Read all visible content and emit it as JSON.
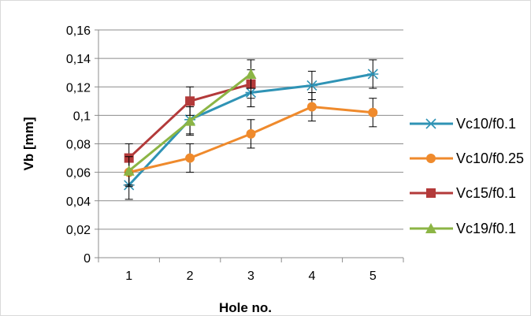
{
  "chart_data": {
    "type": "line",
    "xlabel": "Hole no.",
    "ylabel": "Vb [mm]",
    "categories": [
      "1",
      "2",
      "3",
      "4",
      "5"
    ],
    "ylim": [
      0,
      0.16
    ],
    "yticks": [
      "0",
      "0,02",
      "0,04",
      "0,06",
      "0,08",
      "0,1",
      "0,12",
      "0,14",
      "0,16"
    ],
    "grid": "horizontal",
    "legend": "right",
    "error_bar": 0.01,
    "series": [
      {
        "name": "Vc10/f0.1",
        "color": "#2f93b5",
        "marker": "asterisk",
        "values": [
          0.051,
          0.097,
          0.116,
          0.121,
          0.129
        ]
      },
      {
        "name": "Vc10/f0.25",
        "color": "#ef8a2c",
        "marker": "circle",
        "values": [
          0.06,
          0.07,
          0.087,
          0.106,
          0.102
        ]
      },
      {
        "name": "Vc15/f0.1",
        "color": "#b33a3a",
        "marker": "square",
        "values": [
          0.07,
          0.11,
          0.122,
          null,
          null
        ]
      },
      {
        "name": "Vc19/f0.1",
        "color": "#8cb545",
        "marker": "triangle",
        "values": [
          0.061,
          0.096,
          0.129,
          null,
          null
        ]
      }
    ]
  }
}
